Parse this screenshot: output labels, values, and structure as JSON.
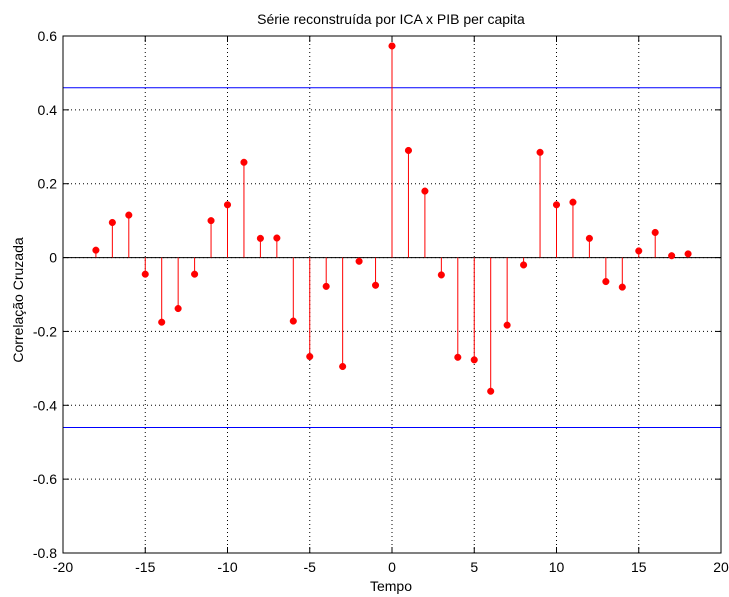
{
  "chart_data": {
    "type": "stem",
    "title": "Série reconstruída por ICA x PIB per capita",
    "xlabel": "Tempo",
    "ylabel": "Correlação Cruzada",
    "xlim": [
      -20,
      20
    ],
    "ylim": [
      -0.8,
      0.6
    ],
    "xticks": [
      -20,
      -15,
      -10,
      -5,
      0,
      5,
      10,
      15,
      20
    ],
    "yticks": [
      -0.8,
      -0.6,
      -0.4,
      -0.2,
      0,
      0.2,
      0.4,
      0.6
    ],
    "xtick_labels": [
      "-20",
      "-15",
      "-10",
      "-5",
      "0",
      "5",
      "10",
      "15",
      "20"
    ],
    "ytick_labels": [
      "-0.8",
      "-0.6",
      "-0.4",
      "-0.2",
      "0",
      "0.2",
      "0.4",
      "0.6"
    ],
    "grid": true,
    "confidence_bounds": [
      0.46,
      -0.46
    ],
    "colors": {
      "stem": "#ff0000",
      "bounds": "#0000ff",
      "zero_line": "#000000",
      "grid": "#000000"
    },
    "x": [
      -18,
      -17,
      -16,
      -15,
      -14,
      -13,
      -12,
      -11,
      -10,
      -9,
      -8,
      -7,
      -6,
      -5,
      -4,
      -3,
      -2,
      -1,
      0,
      1,
      2,
      3,
      4,
      5,
      6,
      7,
      8,
      9,
      10,
      11,
      12,
      13,
      14,
      15,
      16,
      17,
      18
    ],
    "y": [
      0.02,
      0.095,
      0.115,
      -0.045,
      -0.175,
      -0.138,
      -0.045,
      0.1,
      0.143,
      0.258,
      0.052,
      0.053,
      -0.172,
      -0.268,
      -0.078,
      -0.295,
      -0.01,
      -0.075,
      0.573,
      0.29,
      0.18,
      -0.047,
      -0.27,
      -0.277,
      -0.362,
      -0.183,
      -0.02,
      0.285,
      0.143,
      0.15,
      0.052,
      -0.065,
      -0.08,
      0.018,
      0.068,
      0.005,
      0.01
    ]
  }
}
